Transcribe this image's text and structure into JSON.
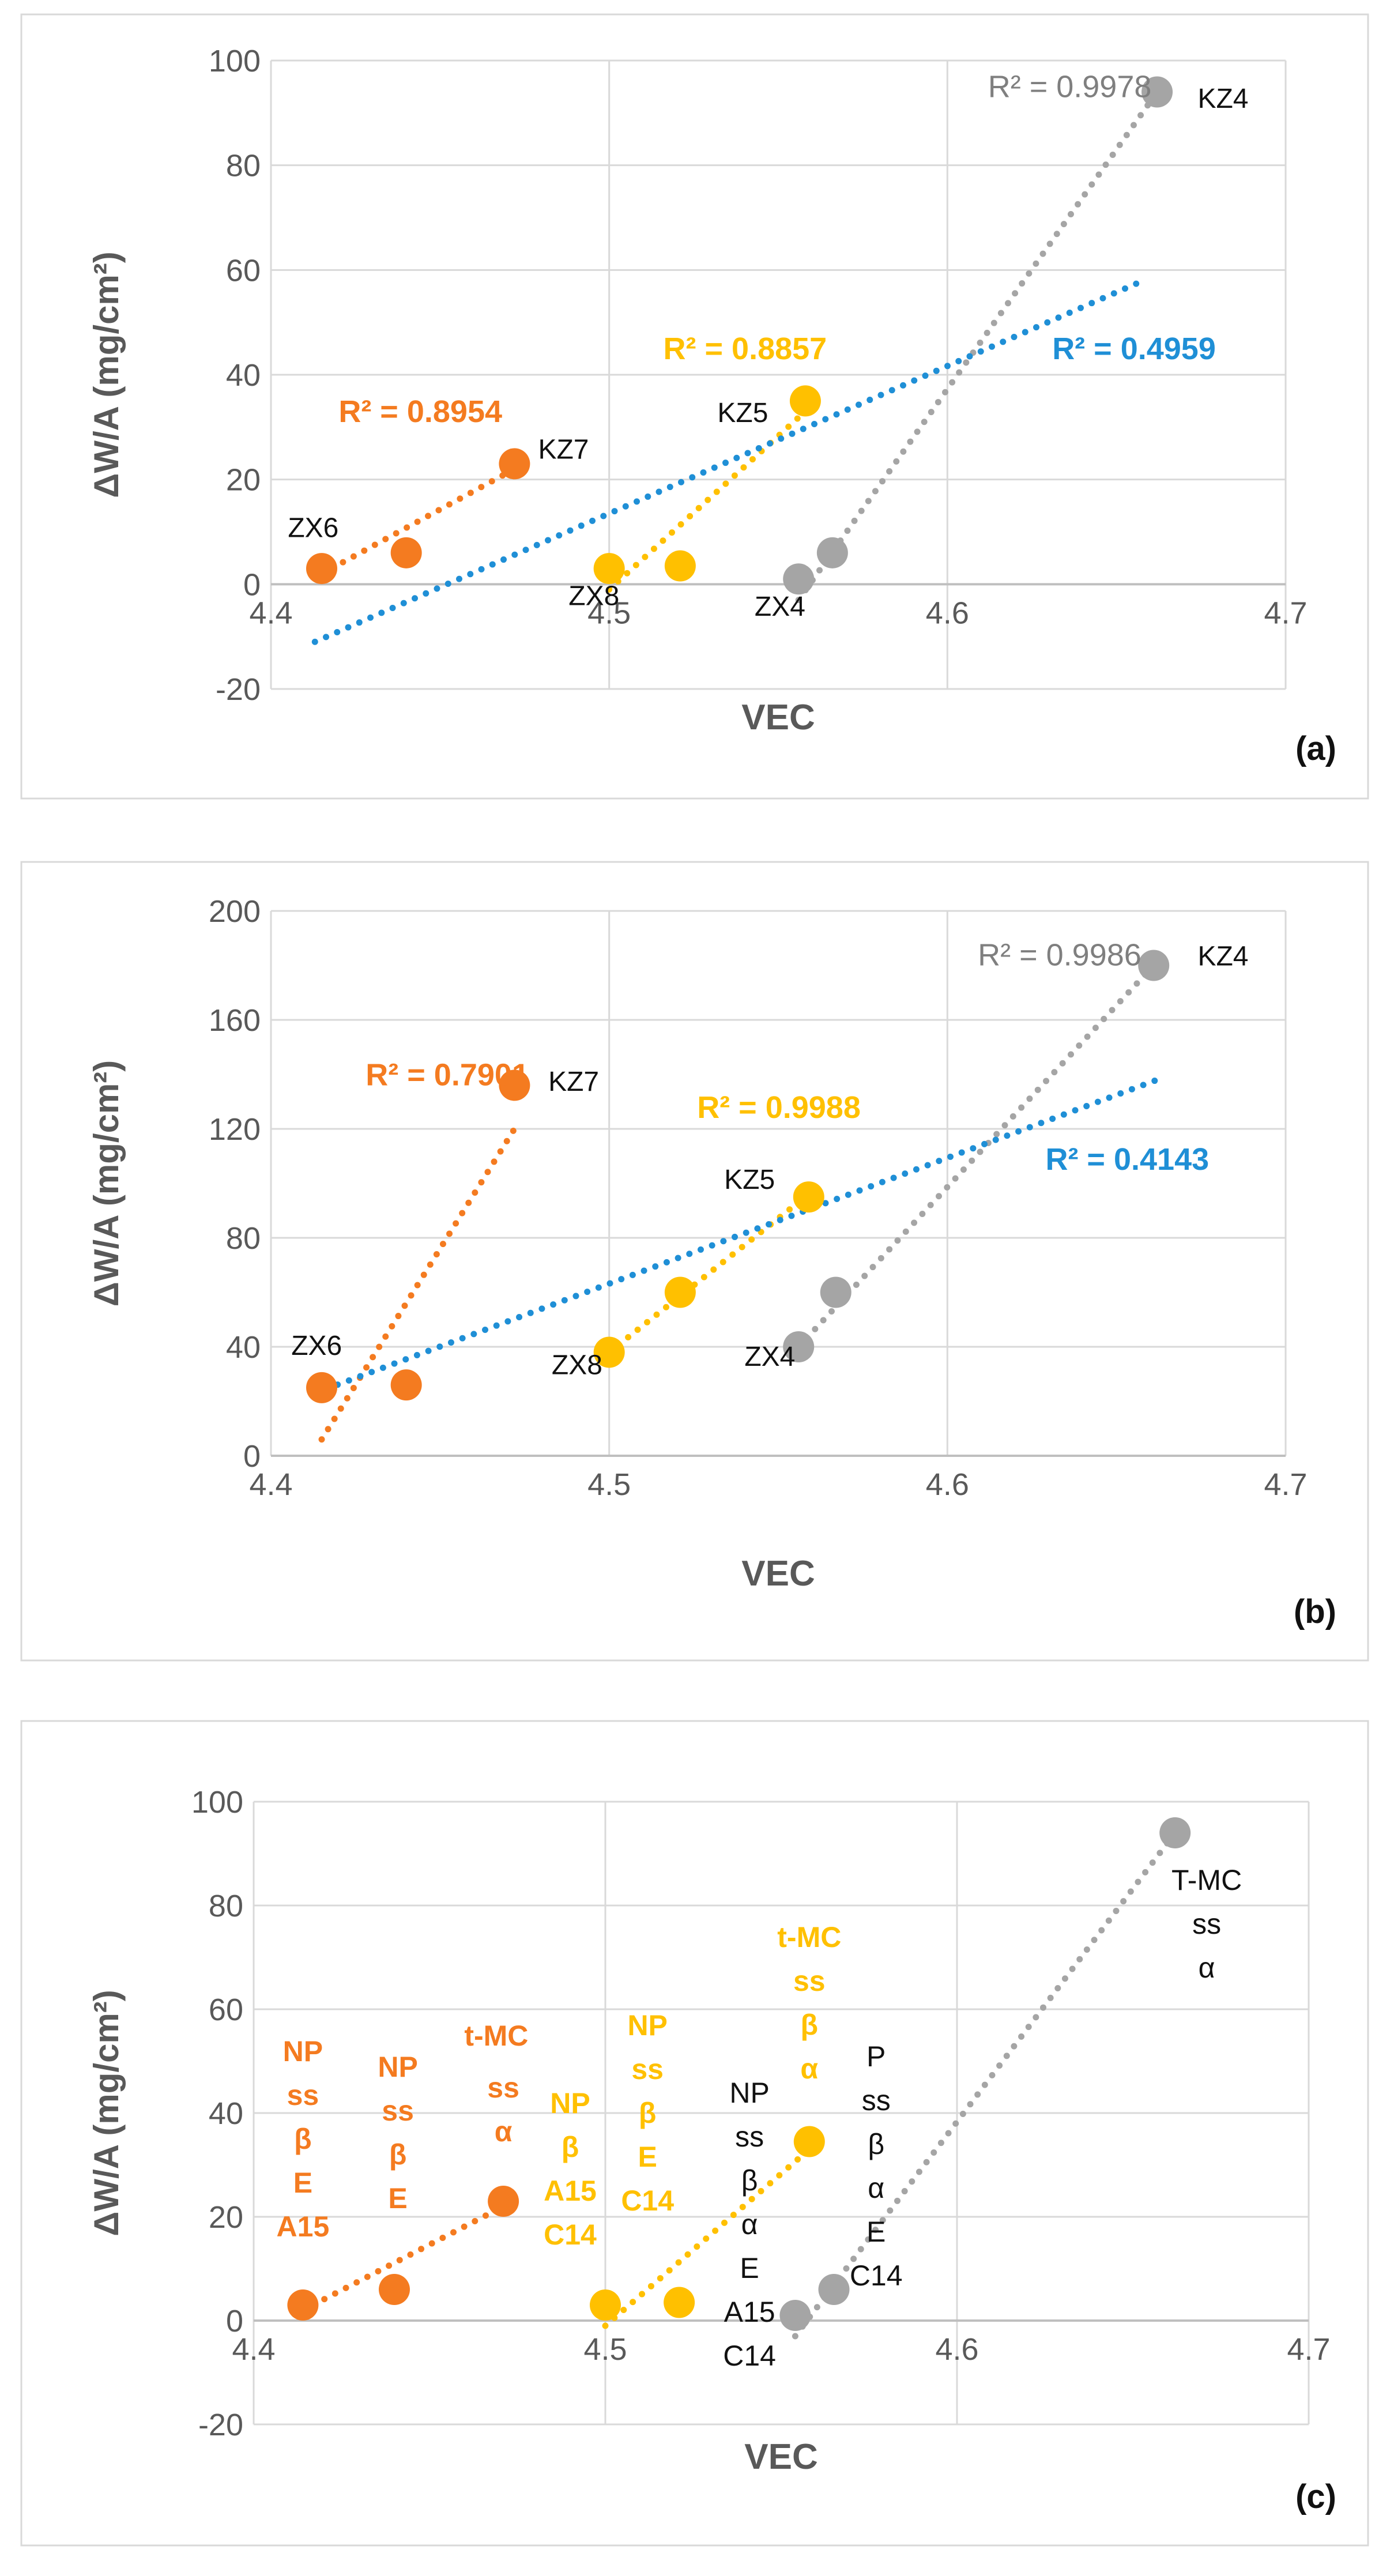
{
  "chart_data": [
    {
      "type": "scatter",
      "panel_label": "(a)",
      "xlabel": "VEC",
      "ylabel": "ΔW/A (mg/cm²)",
      "xlim": [
        4.4,
        4.7
      ],
      "ylim": [
        -20,
        100
      ],
      "xticks": [
        4.4,
        4.5,
        4.6,
        4.7
      ],
      "yticks": [
        -20,
        0,
        20,
        40,
        60,
        80,
        100
      ],
      "grid": true,
      "series": [
        {
          "name": "orange",
          "color": "#F47B20",
          "x": [
            4.415,
            4.44,
            4.472
          ],
          "y": [
            3,
            6,
            23
          ],
          "trend": {
            "x": [
              4.415,
              4.472
            ],
            "y": [
              2,
              22
            ]
          },
          "r2": {
            "text": "R² = 0.8954",
            "x": 4.42,
            "y": 31,
            "bold": true
          }
        },
        {
          "name": "yellow",
          "color": "#FFC000",
          "x": [
            4.5,
            4.521,
            4.558
          ],
          "y": [
            3,
            3.5,
            35
          ],
          "trend": {
            "x": [
              4.5,
              4.558
            ],
            "y": [
              -1,
              33
            ]
          },
          "r2": {
            "text": "R² = 0.8857",
            "x": 4.516,
            "y": 43,
            "bold": true
          }
        },
        {
          "name": "gray",
          "color": "#A5A5A5",
          "x": [
            4.556,
            4.566,
            4.662
          ],
          "y": [
            1,
            6,
            94
          ],
          "trend": {
            "x": [
              4.556,
              4.662
            ],
            "y": [
              -3,
              94
            ]
          },
          "r2": {
            "text": "R² = 0.9978",
            "x": 4.612,
            "y": 93,
            "bold": false
          }
        },
        {
          "name": "blue",
          "color": "#1F8FD6",
          "x": [],
          "y": [],
          "trend": {
            "x": [
              4.413,
              4.658
            ],
            "y": [
              -11,
              58
            ]
          },
          "r2": {
            "text": "R² = 0.4959",
            "x": 4.631,
            "y": 43,
            "bold": true
          }
        }
      ],
      "point_labels": [
        {
          "text": "ZX6",
          "x": 4.405,
          "y": 9
        },
        {
          "text": "KZ7",
          "x": 4.479,
          "y": 24
        },
        {
          "text": "KZ5",
          "x": 4.532,
          "y": 31
        },
        {
          "text": "ZX8",
          "x": 4.488,
          "y": -4
        },
        {
          "text": "ZX4",
          "x": 4.543,
          "y": -6
        },
        {
          "text": "KZ4",
          "x": 4.674,
          "y": 91
        }
      ],
      "annotations": []
    },
    {
      "type": "scatter",
      "panel_label": "(b)",
      "xlabel": "VEC",
      "ylabel": "ΔW/A (mg/cm²)",
      "xlim": [
        4.4,
        4.7
      ],
      "ylim": [
        0,
        200
      ],
      "xticks": [
        4.4,
        4.5,
        4.6,
        4.7
      ],
      "yticks": [
        0,
        40,
        80,
        120,
        160,
        200
      ],
      "grid": true,
      "series": [
        {
          "name": "orange",
          "color": "#F47B20",
          "x": [
            4.415,
            4.44,
            4.472
          ],
          "y": [
            25,
            26,
            136
          ],
          "trend": {
            "x": [
              4.415,
              4.472
            ],
            "y": [
              6,
              120
            ]
          },
          "r2": {
            "text": "R² = 0.7901",
            "x": 4.428,
            "y": 136,
            "bold": true
          }
        },
        {
          "name": "yellow",
          "color": "#FFC000",
          "x": [
            4.5,
            4.521,
            4.559
          ],
          "y": [
            38,
            60,
            95
          ],
          "trend": {
            "x": [
              4.5,
              4.559
            ],
            "y": [
              38,
              96
            ]
          },
          "r2": {
            "text": "R² = 0.9988",
            "x": 4.526,
            "y": 124,
            "bold": true
          }
        },
        {
          "name": "gray",
          "color": "#A5A5A5",
          "x": [
            4.556,
            4.567,
            4.661
          ],
          "y": [
            40,
            60,
            180
          ],
          "trend": {
            "x": [
              4.556,
              4.661
            ],
            "y": [
              40,
              180
            ]
          },
          "r2": {
            "text": "R² = 0.9986",
            "x": 4.609,
            "y": 180,
            "bold": false
          }
        },
        {
          "name": "blue",
          "color": "#1F8FD6",
          "x": [],
          "y": [],
          "trend": {
            "x": [
              4.413,
              4.662
            ],
            "y": [
              23,
              138
            ]
          },
          "r2": {
            "text": "R² = 0.4143",
            "x": 4.629,
            "y": 105,
            "bold": true
          }
        }
      ],
      "point_labels": [
        {
          "text": "KZ7",
          "x": 4.482,
          "y": 134
        },
        {
          "text": "KZ5",
          "x": 4.534,
          "y": 98
        },
        {
          "text": "ZX6",
          "x": 4.406,
          "y": 37
        },
        {
          "text": "ZX8",
          "x": 4.483,
          "y": 30
        },
        {
          "text": "ZX4",
          "x": 4.54,
          "y": 33
        },
        {
          "text": "KZ4",
          "x": 4.674,
          "y": 180
        }
      ],
      "annotations": []
    },
    {
      "type": "scatter",
      "panel_label": "(c)",
      "xlabel": "VEC",
      "ylabel": "ΔW/A (mg/cm²)",
      "xlim": [
        4.4,
        4.7
      ],
      "ylim": [
        -20,
        100
      ],
      "xticks": [
        4.4,
        4.5,
        4.6,
        4.7
      ],
      "yticks": [
        -20,
        0,
        20,
        40,
        60,
        80,
        100
      ],
      "grid": true,
      "series": [
        {
          "name": "orange",
          "color": "#F47B20",
          "x": [
            4.414,
            4.44,
            4.471
          ],
          "y": [
            3,
            6,
            23
          ],
          "trend": {
            "x": [
              4.414,
              4.471
            ],
            "y": [
              2,
              22
            ]
          },
          "r2": null
        },
        {
          "name": "yellow",
          "color": "#FFC000",
          "x": [
            4.5,
            4.521,
            4.558
          ],
          "y": [
            3,
            3.5,
            34.5
          ],
          "trend": {
            "x": [
              4.5,
              4.558
            ],
            "y": [
              -1,
              33
            ]
          },
          "r2": null
        },
        {
          "name": "gray",
          "color": "#A5A5A5",
          "x": [
            4.554,
            4.565,
            4.662
          ],
          "y": [
            1,
            6,
            94
          ],
          "trend": {
            "x": [
              4.554,
              4.662
            ],
            "y": [
              -3,
              94
            ]
          },
          "r2": null
        }
      ],
      "point_labels": [],
      "annotations": [
        {
          "color": "#F47B20",
          "x": 4.414,
          "y": 50,
          "lines": [
            "NP",
            "ss",
            "β",
            "E",
            "A15"
          ],
          "bold": true
        },
        {
          "color": "#F47B20",
          "x": 4.441,
          "y": 47,
          "lines": [
            "NP",
            "ss",
            "β",
            "E"
          ],
          "bold": true
        },
        {
          "color": "#F47B20",
          "x": 4.469,
          "y": 53,
          "lines": [
            "t-MC"
          ],
          "bold": true
        },
        {
          "color": "#F47B20",
          "x": 4.471,
          "y": 43,
          "lines": [
            "ss",
            "α"
          ],
          "bold": true
        },
        {
          "color": "#FFC000",
          "x": 4.49,
          "y": 40,
          "lines": [
            "NP",
            "β",
            "A15",
            "C14"
          ],
          "bold": true
        },
        {
          "color": "#FFC000",
          "x": 4.512,
          "y": 55,
          "lines": [
            "NP",
            "ss",
            "β",
            "E",
            "C14"
          ],
          "bold": true
        },
        {
          "color": "#FFC000",
          "x": 4.558,
          "y": 72,
          "lines": [
            "t-MC",
            "ss",
            "β",
            "α"
          ],
          "bold": true
        },
        {
          "color": "#111111",
          "x": 4.541,
          "y": 42,
          "lines": [
            "NP",
            "ss",
            "β",
            "α",
            "E",
            "A15",
            "C14"
          ],
          "bold": false
        },
        {
          "color": "#111111",
          "x": 4.577,
          "y": 49,
          "lines": [
            "P",
            "ss",
            "β",
            "α",
            "E",
            "C14"
          ],
          "bold": false
        },
        {
          "color": "#111111",
          "x": 4.671,
          "y": 83,
          "lines": [
            "T-MC",
            "ss",
            "α"
          ],
          "bold": false
        }
      ]
    }
  ]
}
